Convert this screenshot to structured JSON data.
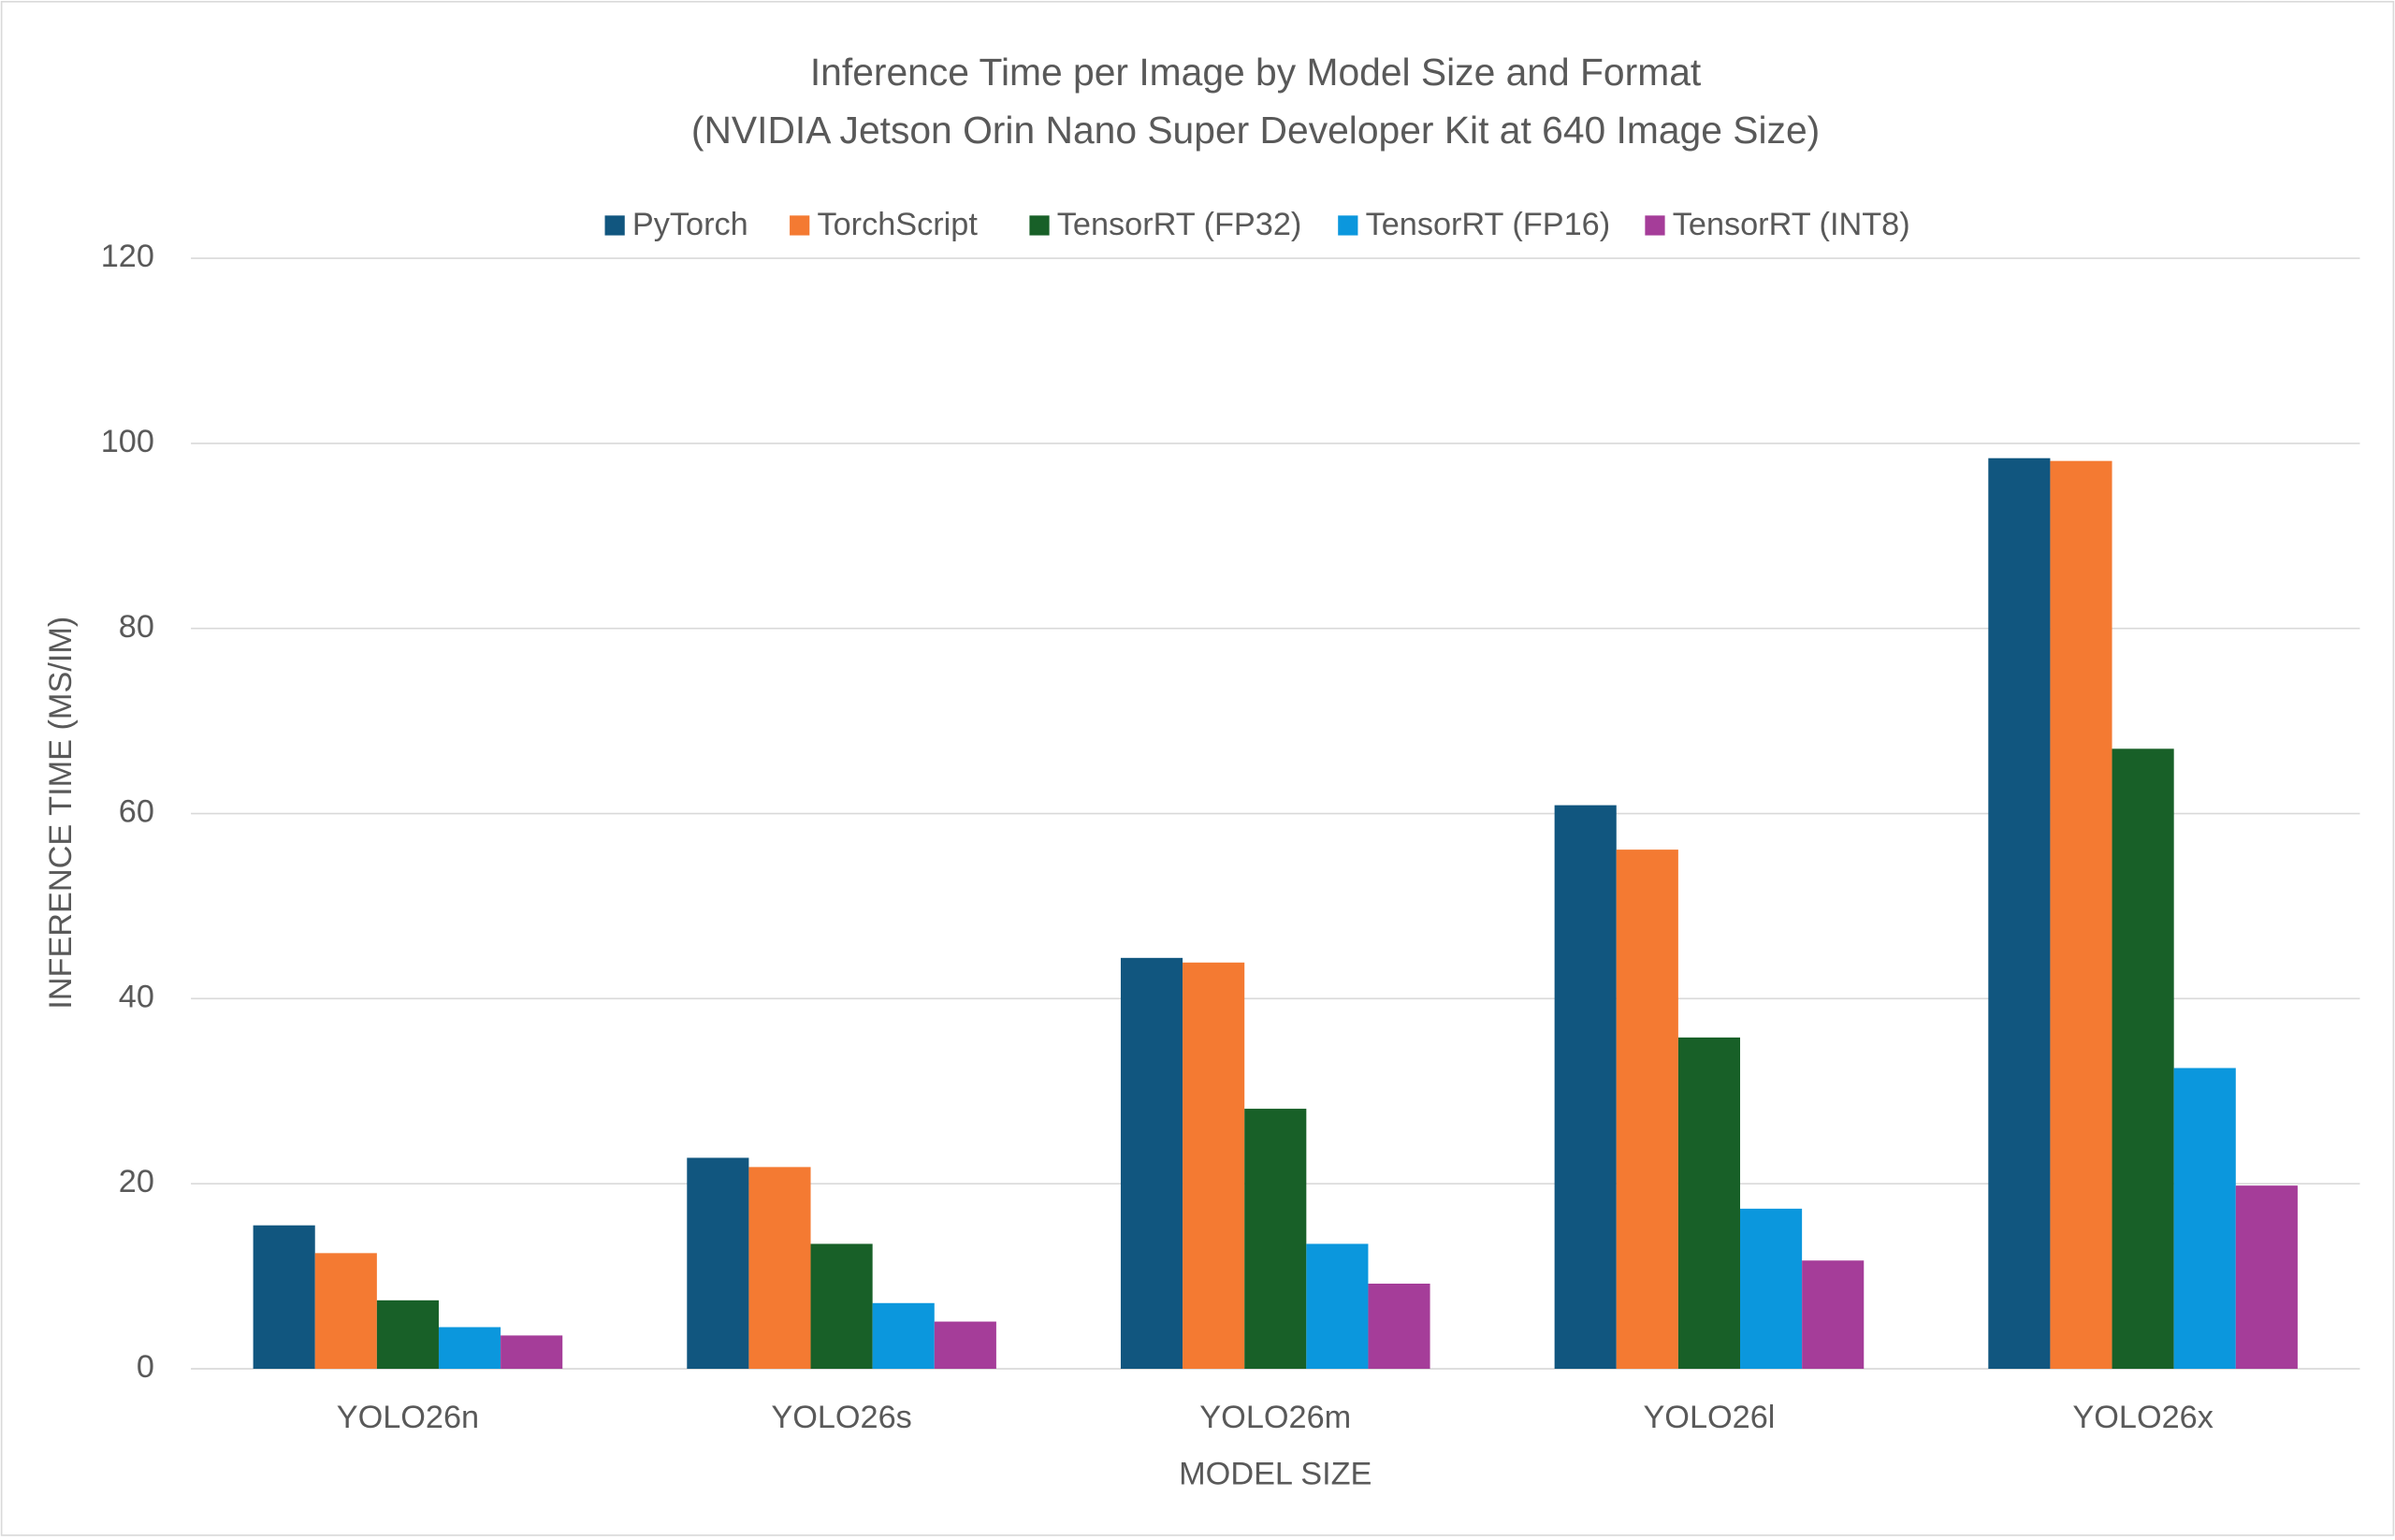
{
  "chart_data": {
    "type": "bar",
    "title": "Inference Time per Image by Model Size and Format",
    "subtitle": "(NVIDIA Jetson Orin Nano Super Developer Kit at 640 Image Size)",
    "x_label": "MODEL SIZE",
    "y_label": "INFERENCE TIME (MS/IM)",
    "categories": [
      "YOLO26n",
      "YOLO26s",
      "YOLO26m",
      "YOLO26l",
      "YOLO26x"
    ],
    "series": [
      {
        "name": "PyTorch",
        "color": "#11567f",
        "values": [
          15.5,
          22.8,
          44.4,
          60.9,
          98.4
        ]
      },
      {
        "name": "TorchScript",
        "color": "#f47a32",
        "values": [
          12.5,
          21.8,
          43.9,
          56.1,
          98.1
        ]
      },
      {
        "name": "TensorRT (FP32)",
        "color": "#186028",
        "values": [
          7.4,
          13.5,
          28.1,
          35.8,
          67.0
        ]
      },
      {
        "name": "TensorRT (FP16)",
        "color": "#0b97dd",
        "values": [
          4.5,
          7.1,
          13.5,
          17.3,
          32.5
        ]
      },
      {
        "name": "TensorRT (INT8)",
        "color": "#a53d99",
        "values": [
          3.6,
          5.1,
          9.2,
          11.7,
          19.8
        ]
      }
    ],
    "ylim": [
      0,
      120
    ],
    "yticks": [
      0,
      20,
      40,
      60,
      80,
      100,
      120
    ],
    "grid": true,
    "legend": "top"
  }
}
